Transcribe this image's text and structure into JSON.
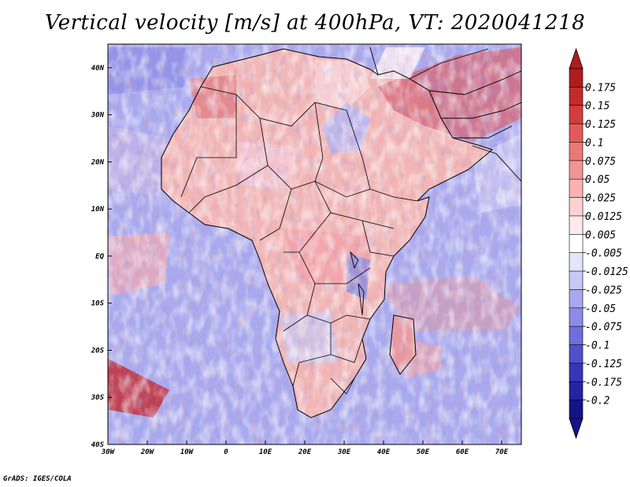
{
  "title": "Vertical velocity [m/s] at 400hPa, VT: 2020041218",
  "credit": "GrADS: IGES/COLA",
  "map": {
    "lon_range": [
      -30,
      75
    ],
    "lat_range": [
      -40,
      45
    ],
    "lon_ticks": [
      {
        "value": -30,
        "label": "30W"
      },
      {
        "value": -20,
        "label": "20W"
      },
      {
        "value": -10,
        "label": "10W"
      },
      {
        "value": 0,
        "label": "0"
      },
      {
        "value": 10,
        "label": "10E"
      },
      {
        "value": 20,
        "label": "20E"
      },
      {
        "value": 30,
        "label": "30E"
      },
      {
        "value": 40,
        "label": "40E"
      },
      {
        "value": 50,
        "label": "50E"
      },
      {
        "value": 60,
        "label": "60E"
      },
      {
        "value": 70,
        "label": "70E"
      }
    ],
    "lat_ticks": [
      {
        "value": 40,
        "label": "40N"
      },
      {
        "value": 30,
        "label": "30N"
      },
      {
        "value": 20,
        "label": "20N"
      },
      {
        "value": 10,
        "label": "10N"
      },
      {
        "value": 0,
        "label": "EQ"
      },
      {
        "value": -10,
        "label": "10S"
      },
      {
        "value": -20,
        "label": "20S"
      },
      {
        "value": -30,
        "label": "30S"
      },
      {
        "value": -40,
        "label": "40S"
      }
    ]
  },
  "colorbar": {
    "labels": [
      "0.175",
      "0.15",
      "0.125",
      "0.1",
      "0.075",
      "0.05",
      "0.025",
      "0.0125",
      "0.005",
      "-0.005",
      "-0.0125",
      "-0.025",
      "-0.05",
      "-0.075",
      "-0.1",
      "-0.125",
      "-0.175",
      "-0.2"
    ],
    "colors": [
      "#b01c1c",
      "#c42a2a",
      "#d43d3d",
      "#e05a5a",
      "#ea7878",
      "#f29494",
      "#f7b2b2",
      "#fbd2d2",
      "#fdeaea",
      "#ffffff",
      "#e4e4fb",
      "#c8c8f6",
      "#a8a8ee",
      "#8c8ce6",
      "#6e6edc",
      "#5050cc",
      "#3636b8",
      "#2424a0",
      "#14148a"
    ],
    "top_triangle_color": "#b01c1c",
    "bottom_triangle_color": "#14148a"
  },
  "colors": {
    "ocean_base": "#a8a8ee",
    "land_base": "#f2b3b3",
    "coastline": "#000000"
  }
}
